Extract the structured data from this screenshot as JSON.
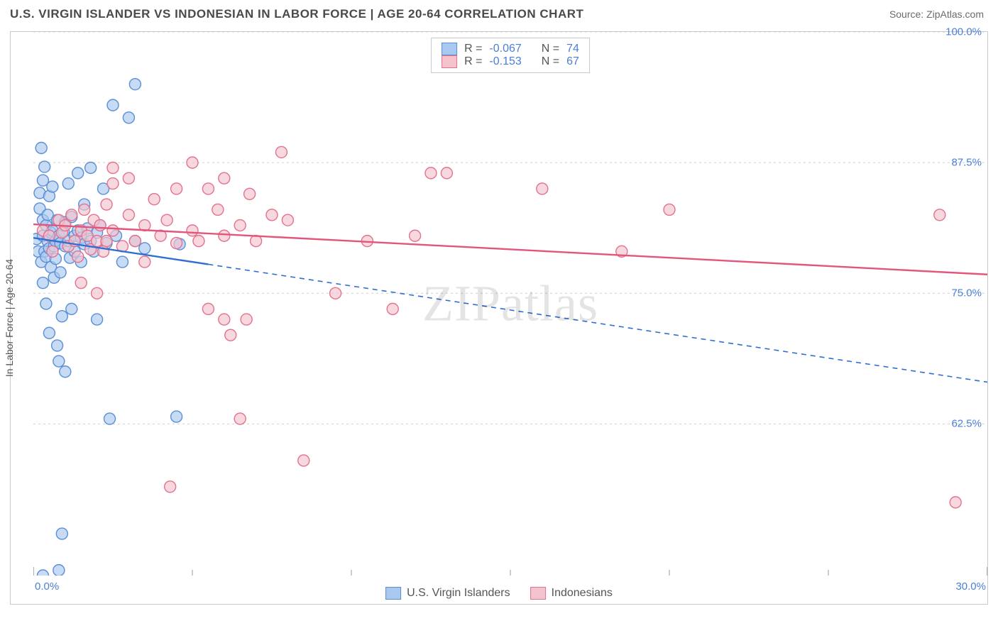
{
  "header": {
    "title": "U.S. VIRGIN ISLANDER VS INDONESIAN IN LABOR FORCE | AGE 20-64 CORRELATION CHART",
    "source_label": "Source: ",
    "source_value": "ZipAtlas.com"
  },
  "watermark": {
    "zip": "ZIP",
    "atlas": "atlas"
  },
  "chart": {
    "type": "scatter",
    "y_axis_label": "In Labor Force | Age 20-64",
    "xlim": [
      0,
      30
    ],
    "ylim": [
      48,
      100
    ],
    "x_ticks": [
      0,
      30
    ],
    "x_tick_labels": [
      "0.0%",
      "30.0%"
    ],
    "x_minor_ticks": [
      5,
      10,
      15,
      20,
      25
    ],
    "y_ticks": [
      62.5,
      75.0,
      87.5,
      100.0
    ],
    "y_tick_labels": [
      "62.5%",
      "75.0%",
      "87.5%",
      "100.0%"
    ],
    "grid_color": "#cfcfcf",
    "grid_dash": "3,4",
    "background_color": "#ffffff",
    "marker_radius": 8,
    "marker_stroke_width": 1.4,
    "series": [
      {
        "id": "usvi",
        "label": "U.S. Virgin Islanders",
        "fill_color": "#a9c8f0",
        "stroke_color": "#5a8fd6",
        "trend_color": "#2f6fd0",
        "trend_width": 2.4,
        "trend_dash_after_x": 5.5,
        "R": "-0.067",
        "N": "74",
        "trend": {
          "x1": 0,
          "y1": 80.3,
          "x2": 30,
          "y2": 66.5
        },
        "points": [
          [
            0.1,
            80.2
          ],
          [
            0.15,
            79.0
          ],
          [
            0.2,
            83.1
          ],
          [
            0.2,
            84.6
          ],
          [
            0.25,
            78.0
          ],
          [
            0.25,
            88.9
          ],
          [
            0.3,
            85.8
          ],
          [
            0.3,
            82.0
          ],
          [
            0.3,
            80.5
          ],
          [
            0.3,
            76.0
          ],
          [
            0.35,
            79.0
          ],
          [
            0.35,
            87.1
          ],
          [
            0.4,
            81.5
          ],
          [
            0.4,
            78.5
          ],
          [
            0.4,
            74.0
          ],
          [
            0.45,
            80.0
          ],
          [
            0.45,
            82.5
          ],
          [
            0.5,
            84.3
          ],
          [
            0.5,
            79.3
          ],
          [
            0.5,
            71.2
          ],
          [
            0.55,
            80.8
          ],
          [
            0.55,
            77.5
          ],
          [
            0.6,
            81.0
          ],
          [
            0.6,
            85.2
          ],
          [
            0.65,
            79.5
          ],
          [
            0.65,
            76.5
          ],
          [
            0.7,
            80.0
          ],
          [
            0.7,
            78.3
          ],
          [
            0.75,
            82.0
          ],
          [
            0.75,
            70.0
          ],
          [
            0.8,
            80.5
          ],
          [
            0.8,
            68.5
          ],
          [
            0.85,
            79.8
          ],
          [
            0.85,
            77.0
          ],
          [
            0.9,
            72.8
          ],
          [
            0.95,
            80.9
          ],
          [
            1.0,
            79.5
          ],
          [
            1.0,
            81.8
          ],
          [
            1.0,
            67.5
          ],
          [
            1.1,
            80.0
          ],
          [
            1.1,
            85.5
          ],
          [
            1.15,
            78.4
          ],
          [
            1.2,
            82.3
          ],
          [
            1.2,
            73.5
          ],
          [
            1.3,
            80.5
          ],
          [
            1.3,
            79.0
          ],
          [
            1.4,
            86.5
          ],
          [
            1.4,
            81.0
          ],
          [
            1.5,
            80.3
          ],
          [
            1.5,
            78.0
          ],
          [
            1.6,
            83.5
          ],
          [
            1.6,
            79.7
          ],
          [
            1.7,
            81.2
          ],
          [
            1.8,
            87.0
          ],
          [
            1.8,
            80.0
          ],
          [
            1.9,
            79.0
          ],
          [
            2.0,
            80.8
          ],
          [
            2.0,
            72.5
          ],
          [
            2.1,
            81.5
          ],
          [
            2.2,
            85.0
          ],
          [
            2.3,
            79.8
          ],
          [
            2.4,
            63.0
          ],
          [
            2.5,
            93.0
          ],
          [
            2.6,
            80.5
          ],
          [
            2.8,
            78.0
          ],
          [
            3.0,
            91.8
          ],
          [
            3.2,
            80.0
          ],
          [
            3.2,
            95.0
          ],
          [
            3.5,
            79.3
          ],
          [
            4.5,
            63.2
          ],
          [
            4.6,
            79.7
          ],
          [
            0.9,
            52.0
          ],
          [
            0.8,
            48.5
          ],
          [
            0.3,
            48.0
          ]
        ]
      },
      {
        "id": "indo",
        "label": "Indonesians",
        "fill_color": "#f5c3ce",
        "stroke_color": "#e4718e",
        "trend_color": "#e4557b",
        "trend_width": 2.4,
        "trend_dash_after_x": 30,
        "R": "-0.153",
        "N": "67",
        "trend": {
          "x1": 0,
          "y1": 81.6,
          "x2": 30,
          "y2": 76.8
        },
        "points": [
          [
            0.3,
            81.0
          ],
          [
            0.5,
            80.5
          ],
          [
            0.6,
            79.0
          ],
          [
            0.8,
            82.0
          ],
          [
            0.9,
            80.8
          ],
          [
            1.0,
            81.5
          ],
          [
            1.1,
            79.5
          ],
          [
            1.2,
            82.5
          ],
          [
            1.3,
            80.0
          ],
          [
            1.4,
            78.5
          ],
          [
            1.5,
            81.0
          ],
          [
            1.5,
            76.0
          ],
          [
            1.6,
            83.0
          ],
          [
            1.7,
            80.5
          ],
          [
            1.8,
            79.2
          ],
          [
            1.9,
            82.0
          ],
          [
            2.0,
            80.0
          ],
          [
            2.0,
            75.0
          ],
          [
            2.1,
            81.5
          ],
          [
            2.2,
            79.0
          ],
          [
            2.3,
            83.5
          ],
          [
            2.3,
            80.0
          ],
          [
            2.5,
            85.5
          ],
          [
            2.5,
            87.0
          ],
          [
            2.5,
            81.0
          ],
          [
            2.8,
            79.5
          ],
          [
            3.0,
            86.0
          ],
          [
            3.0,
            82.5
          ],
          [
            3.2,
            80.0
          ],
          [
            3.5,
            81.5
          ],
          [
            3.5,
            78.0
          ],
          [
            3.8,
            84.0
          ],
          [
            4.0,
            80.5
          ],
          [
            4.2,
            82.0
          ],
          [
            4.3,
            56.5
          ],
          [
            4.5,
            85.0
          ],
          [
            4.5,
            79.8
          ],
          [
            5.0,
            87.5
          ],
          [
            5.0,
            81.0
          ],
          [
            5.2,
            80.0
          ],
          [
            5.5,
            85.0
          ],
          [
            5.5,
            73.5
          ],
          [
            5.8,
            83.0
          ],
          [
            6.0,
            80.5
          ],
          [
            6.0,
            86.0
          ],
          [
            6.0,
            72.5
          ],
          [
            6.2,
            71.0
          ],
          [
            6.5,
            81.5
          ],
          [
            6.5,
            63.0
          ],
          [
            6.7,
            72.5
          ],
          [
            6.8,
            84.5
          ],
          [
            7.0,
            80.0
          ],
          [
            7.5,
            82.5
          ],
          [
            7.8,
            88.5
          ],
          [
            8.0,
            82.0
          ],
          [
            9.5,
            75.0
          ],
          [
            10.5,
            80.0
          ],
          [
            11.3,
            73.5
          ],
          [
            12.0,
            80.5
          ],
          [
            12.5,
            86.5
          ],
          [
            13.0,
            86.5
          ],
          [
            16.0,
            85.0
          ],
          [
            18.5,
            79.0
          ],
          [
            20.0,
            83.0
          ],
          [
            28.5,
            82.5
          ],
          [
            29.0,
            55.0
          ],
          [
            8.5,
            59.0
          ]
        ]
      }
    ]
  },
  "legend_top_labels": {
    "R": "R =",
    "N": "N ="
  }
}
